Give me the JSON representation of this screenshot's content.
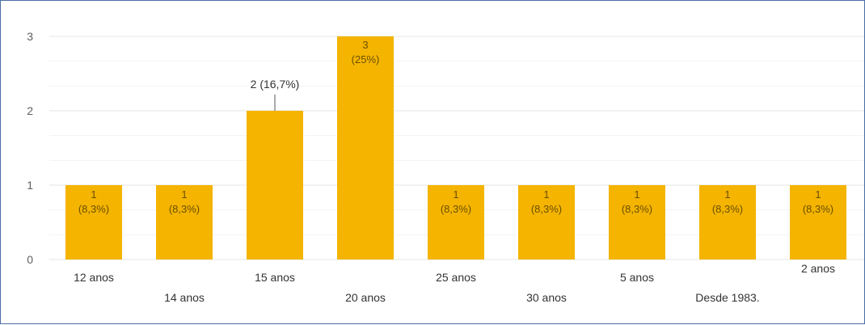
{
  "chart_data": {
    "type": "bar",
    "categories": [
      "12 anos",
      "14 anos",
      "15 anos",
      "20 anos",
      "25 anos",
      "30 anos",
      "5 anos",
      "Desde 1983.",
      "2 anos"
    ],
    "values": [
      1,
      1,
      2,
      3,
      1,
      1,
      1,
      1,
      1
    ],
    "data_labels_count": [
      "1",
      "1",
      "2",
      "3",
      "1",
      "1",
      "1",
      "1",
      "1"
    ],
    "data_labels_pct": [
      "(8,3%)",
      "(8,3%)",
      "(16,7%)",
      "(25%)",
      "(8,3%)",
      "(8,3%)",
      "(8,3%)",
      "(8,3%)",
      "(8,3%)"
    ],
    "ylim": [
      0,
      3
    ],
    "yticks": [
      "0",
      "1",
      "2",
      "3"
    ],
    "grid": true,
    "bar_color": "#F4B400",
    "title": "",
    "xlabel": "",
    "ylabel": ""
  }
}
